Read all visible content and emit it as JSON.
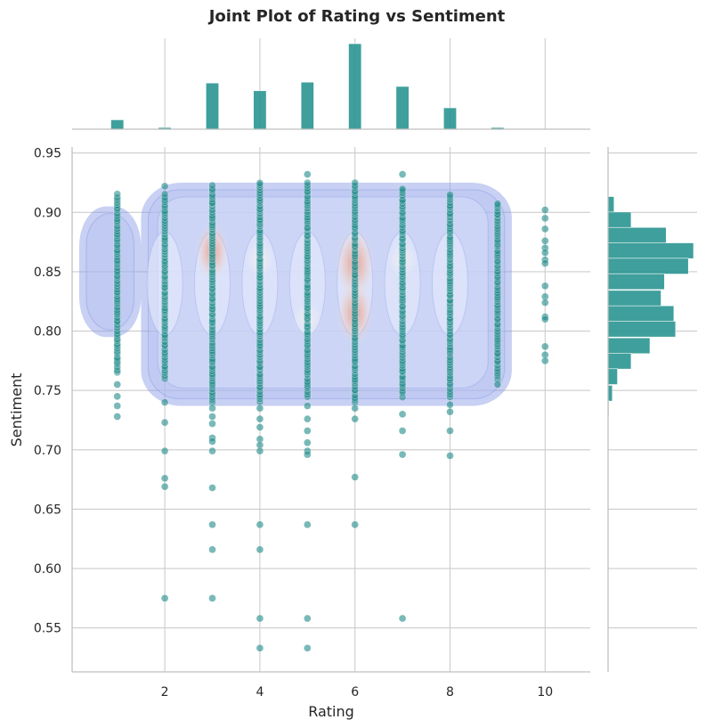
{
  "chart_data": {
    "type": "scatter",
    "title": "Joint Plot of Rating vs Sentiment",
    "xlabel": "Rating",
    "ylabel": "Sentiment",
    "xlim": [
      0.05,
      10.95
    ],
    "ylim": [
      0.513,
      0.955
    ],
    "xticks": [
      2,
      4,
      6,
      8,
      10
    ],
    "yticks": [
      0.55,
      0.6,
      0.65,
      0.7,
      0.75,
      0.8,
      0.85,
      0.9,
      0.95
    ],
    "grid": true,
    "colors": {
      "points": "#1f8a88",
      "histogram": "#2a9591",
      "kde_low": "#8d9ce6",
      "kde_high": "#e8856f"
    },
    "scatter": {
      "ratings": [
        1,
        2,
        3,
        4,
        5,
        6,
        7,
        8,
        9,
        10
      ],
      "band": [
        [
          0.765,
          0.915
        ],
        [
          0.76,
          0.915
        ],
        [
          0.74,
          0.922
        ],
        [
          0.74,
          0.925
        ],
        [
          0.745,
          0.925
        ],
        [
          0.74,
          0.925
        ],
        [
          0.745,
          0.92
        ],
        [
          0.745,
          0.915
        ],
        [
          0.76,
          0.908
        ],
        [
          0.0,
          0.0
        ]
      ],
      "outliers": [
        [
          1,
          0.755
        ],
        [
          1,
          0.745
        ],
        [
          1,
          0.737
        ],
        [
          1,
          0.728
        ],
        [
          2,
          0.922
        ],
        [
          2,
          0.74
        ],
        [
          2,
          0.723
        ],
        [
          2,
          0.699
        ],
        [
          2,
          0.676
        ],
        [
          2,
          0.669
        ],
        [
          2,
          0.575
        ],
        [
          3,
          0.735
        ],
        [
          3,
          0.728
        ],
        [
          3,
          0.722
        ],
        [
          3,
          0.71
        ],
        [
          3,
          0.707
        ],
        [
          3,
          0.699
        ],
        [
          3,
          0.668
        ],
        [
          3,
          0.637
        ],
        [
          3,
          0.616
        ],
        [
          3,
          0.575
        ],
        [
          4,
          0.735
        ],
        [
          4,
          0.726
        ],
        [
          4,
          0.719
        ],
        [
          4,
          0.709
        ],
        [
          4,
          0.704
        ],
        [
          4,
          0.699
        ],
        [
          4,
          0.637
        ],
        [
          4,
          0.616
        ],
        [
          4,
          0.558
        ],
        [
          4,
          0.533
        ],
        [
          5,
          0.932
        ],
        [
          5,
          0.737
        ],
        [
          5,
          0.726
        ],
        [
          5,
          0.716
        ],
        [
          5,
          0.706
        ],
        [
          5,
          0.699
        ],
        [
          5,
          0.696
        ],
        [
          5,
          0.637
        ],
        [
          5,
          0.558
        ],
        [
          5,
          0.533
        ],
        [
          6,
          0.735
        ],
        [
          6,
          0.726
        ],
        [
          6,
          0.677
        ],
        [
          6,
          0.637
        ],
        [
          7,
          0.932
        ],
        [
          7,
          0.73
        ],
        [
          7,
          0.716
        ],
        [
          7,
          0.696
        ],
        [
          7,
          0.558
        ],
        [
          8,
          0.738
        ],
        [
          8,
          0.732
        ],
        [
          8,
          0.716
        ],
        [
          8,
          0.695
        ],
        [
          9,
          0.755
        ],
        [
          10,
          0.902
        ],
        [
          10,
          0.895
        ],
        [
          10,
          0.886
        ],
        [
          10,
          0.876
        ],
        [
          10,
          0.87
        ],
        [
          10,
          0.866
        ],
        [
          10,
          0.86
        ],
        [
          10,
          0.857
        ],
        [
          10,
          0.838
        ],
        [
          10,
          0.829
        ],
        [
          10,
          0.824
        ],
        [
          10,
          0.812
        ],
        [
          10,
          0.81
        ],
        [
          10,
          0.787
        ],
        [
          10,
          0.78
        ],
        [
          10,
          0.775
        ]
      ]
    },
    "marginal_x": {
      "bin_edges_start": 0.95,
      "bin_width": 0.27,
      "counts_relative": [
        [
          1,
          0.11
        ],
        [
          2,
          0.02
        ],
        [
          3,
          0.54
        ],
        [
          4,
          0.45
        ],
        [
          5,
          0.55
        ],
        [
          6,
          1.0
        ],
        [
          7,
          0.5
        ],
        [
          8,
          0.25
        ],
        [
          9,
          0.02
        ]
      ]
    },
    "marginal_y": {
      "bin_width": 0.0133,
      "bins": [
        [
          0.9,
          0.07
        ],
        [
          0.887,
          0.27
        ],
        [
          0.874,
          0.68
        ],
        [
          0.861,
          1.0
        ],
        [
          0.848,
          0.94
        ],
        [
          0.835,
          0.66
        ],
        [
          0.821,
          0.62
        ],
        [
          0.808,
          0.77
        ],
        [
          0.795,
          0.79
        ],
        [
          0.781,
          0.49
        ],
        [
          0.768,
          0.27
        ],
        [
          0.755,
          0.11
        ],
        [
          0.741,
          0.05
        ],
        [
          0.728,
          0.01
        ]
      ]
    },
    "kde": {
      "region": [
        [
          0.2,
          1.5,
          0.795,
          0.905
        ],
        [
          1.5,
          9.3,
          0.737,
          0.925
        ]
      ],
      "hotspots": [
        [
          3,
          0.867,
          0.6
        ],
        [
          6,
          0.857,
          1.0
        ],
        [
          6,
          0.815,
          0.8
        ],
        [
          5,
          0.81,
          0.35
        ],
        [
          4,
          0.86,
          0.3
        ],
        [
          7,
          0.86,
          0.3
        ]
      ]
    }
  }
}
